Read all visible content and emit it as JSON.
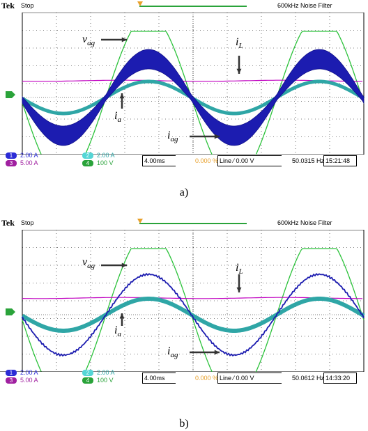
{
  "panels": [
    {
      "caption": "a)",
      "header": {
        "brand": "Tek",
        "state": "Stop",
        "filter": "600kHz  Noise Filter"
      },
      "channels": [
        {
          "num": "1",
          "value": "2.00 A",
          "color": "#2b2bd6"
        },
        {
          "num": "2",
          "value": "2.00 A",
          "color": "#54d6d6"
        },
        {
          "num": "3",
          "value": "5.00 A",
          "color": "#a020a0"
        },
        {
          "num": "4",
          "value": "100 V",
          "color": "#2aa33a"
        }
      ],
      "timebase": "4.00ms",
      "trigger_pos": "0.000 %",
      "trigger": "Line  ⁄ 0.00 V",
      "frequency": "50.0315 Hz",
      "time": "15:21:48",
      "ground_marker": "4",
      "labels": {
        "vag": "v",
        "vag_sub": "ag",
        "iL": "i",
        "iL_sub": "L",
        "ia": "i",
        "ia_sub": "a",
        "iag": "i",
        "iag_sub": "ag"
      }
    },
    {
      "caption": "b)",
      "header": {
        "brand": "Tek",
        "state": "Stop",
        "filter": "600kHz  Noise Filter"
      },
      "channels": [
        {
          "num": "1",
          "value": "2.00 A",
          "color": "#2b2bd6"
        },
        {
          "num": "2",
          "value": "2.00 A",
          "color": "#54d6d6"
        },
        {
          "num": "3",
          "value": "5.00 A",
          "color": "#a020a0"
        },
        {
          "num": "4",
          "value": "100 V",
          "color": "#2aa33a"
        }
      ],
      "timebase": "4.00ms",
      "trigger_pos": "0.000 %",
      "trigger": "Line  ⁄ 0.00 V",
      "frequency": "50.0612 Hz",
      "time": "14:33:20",
      "ground_marker": "4",
      "labels": {
        "vag": "v",
        "vag_sub": "ag",
        "iL": "i",
        "iL_sub": "L",
        "ia": "i",
        "ia_sub": "a",
        "iag": "i",
        "iag_sub": "ag"
      }
    }
  ],
  "colors": {
    "green": "#2aa33a",
    "blue": "#1c1cb0",
    "teal": "#2fa6a6",
    "magenta": "#c000c0",
    "grid": "#000000"
  }
}
